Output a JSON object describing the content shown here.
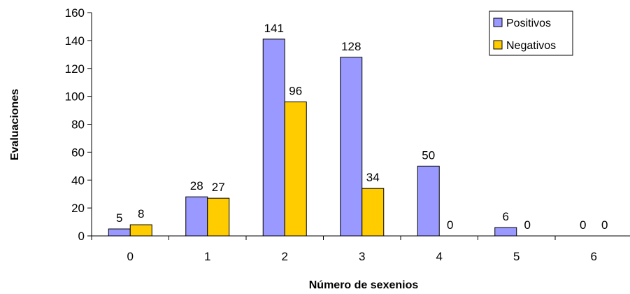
{
  "chart_data": {
    "type": "bar",
    "categories": [
      "0",
      "1",
      "2",
      "3",
      "4",
      "5",
      "6"
    ],
    "series": [
      {
        "name": "Positivos",
        "values": [
          5,
          28,
          141,
          128,
          50,
          6,
          0
        ],
        "color": "#9999ff"
      },
      {
        "name": "Negativos",
        "values": [
          8,
          27,
          96,
          34,
          0,
          0,
          0
        ],
        "color": "#ffcc00"
      }
    ],
    "xlabel": "Número de sexenios",
    "ylabel": "Evaluaciones",
    "ylim": [
      0,
      160
    ],
    "yticks": [
      0,
      20,
      40,
      60,
      80,
      100,
      120,
      140,
      160
    ],
    "legend_position": "top-right",
    "grid": false,
    "data_labels": true
  }
}
